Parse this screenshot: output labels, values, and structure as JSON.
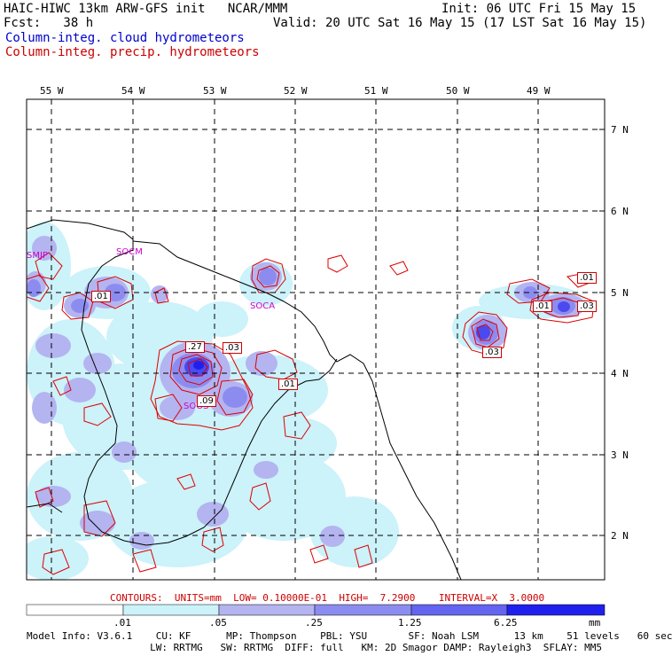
{
  "header": {
    "model": "HAIC-HIWC 13km ARW-GFS init",
    "org": "NCAR/MMM",
    "init": "Init: 06 UTC Fri 15 May 15",
    "fcst": "Fcst:   38 h",
    "valid": "Valid: 20 UTC Sat 16 May 15 (17 LST Sat 16 May 15)",
    "field1": "Column-integ. cloud hydrometeors",
    "field2": "Column-integ. precip. hydrometeors"
  },
  "map": {
    "lon_labels": [
      "55 W",
      "54 W",
      "53 W",
      "52 W",
      "51 W",
      "50 W",
      "49 W"
    ],
    "lat_labels": [
      "7 N",
      "6 N",
      "5 N",
      "4 N",
      "3 N",
      "2 N"
    ],
    "stations": [
      "SMJP",
      "SOCM",
      "SOCA",
      "SOOS"
    ],
    "contour_labels": [
      ".01",
      ".27",
      ".03",
      ".01",
      ".09",
      ".01",
      ".01",
      ".03",
      ".03"
    ]
  },
  "contours_info": {
    "label": "CONTOURS:",
    "units": "UNITS=mm",
    "low": "LOW= 0.10000E-01",
    "high": "HIGH=  7.2900",
    "interval": "INTERVAL=X  3.0000"
  },
  "legend": {
    "ticks": [
      ".01",
      ".05",
      ".25",
      "1.25",
      "6.25"
    ],
    "unit": "mm",
    "colors": [
      "#ffffff",
      "#ccf2fa",
      "#b4b4f0",
      "#8c8cf0",
      "#6464f0",
      "#2020ee"
    ]
  },
  "model_info": {
    "line1": "Model Info: V3.6.1    CU: KF      MP: Thompson    PBL: YSU       SF: Noah LSM      13 km    51 levels   60 sec",
    "line2": "                     LW: RRTMG   SW: RRTMG  DIFF: full   KM: 2D Smagor DAMP: Rayleigh3  SFLAY: MM5"
  }
}
